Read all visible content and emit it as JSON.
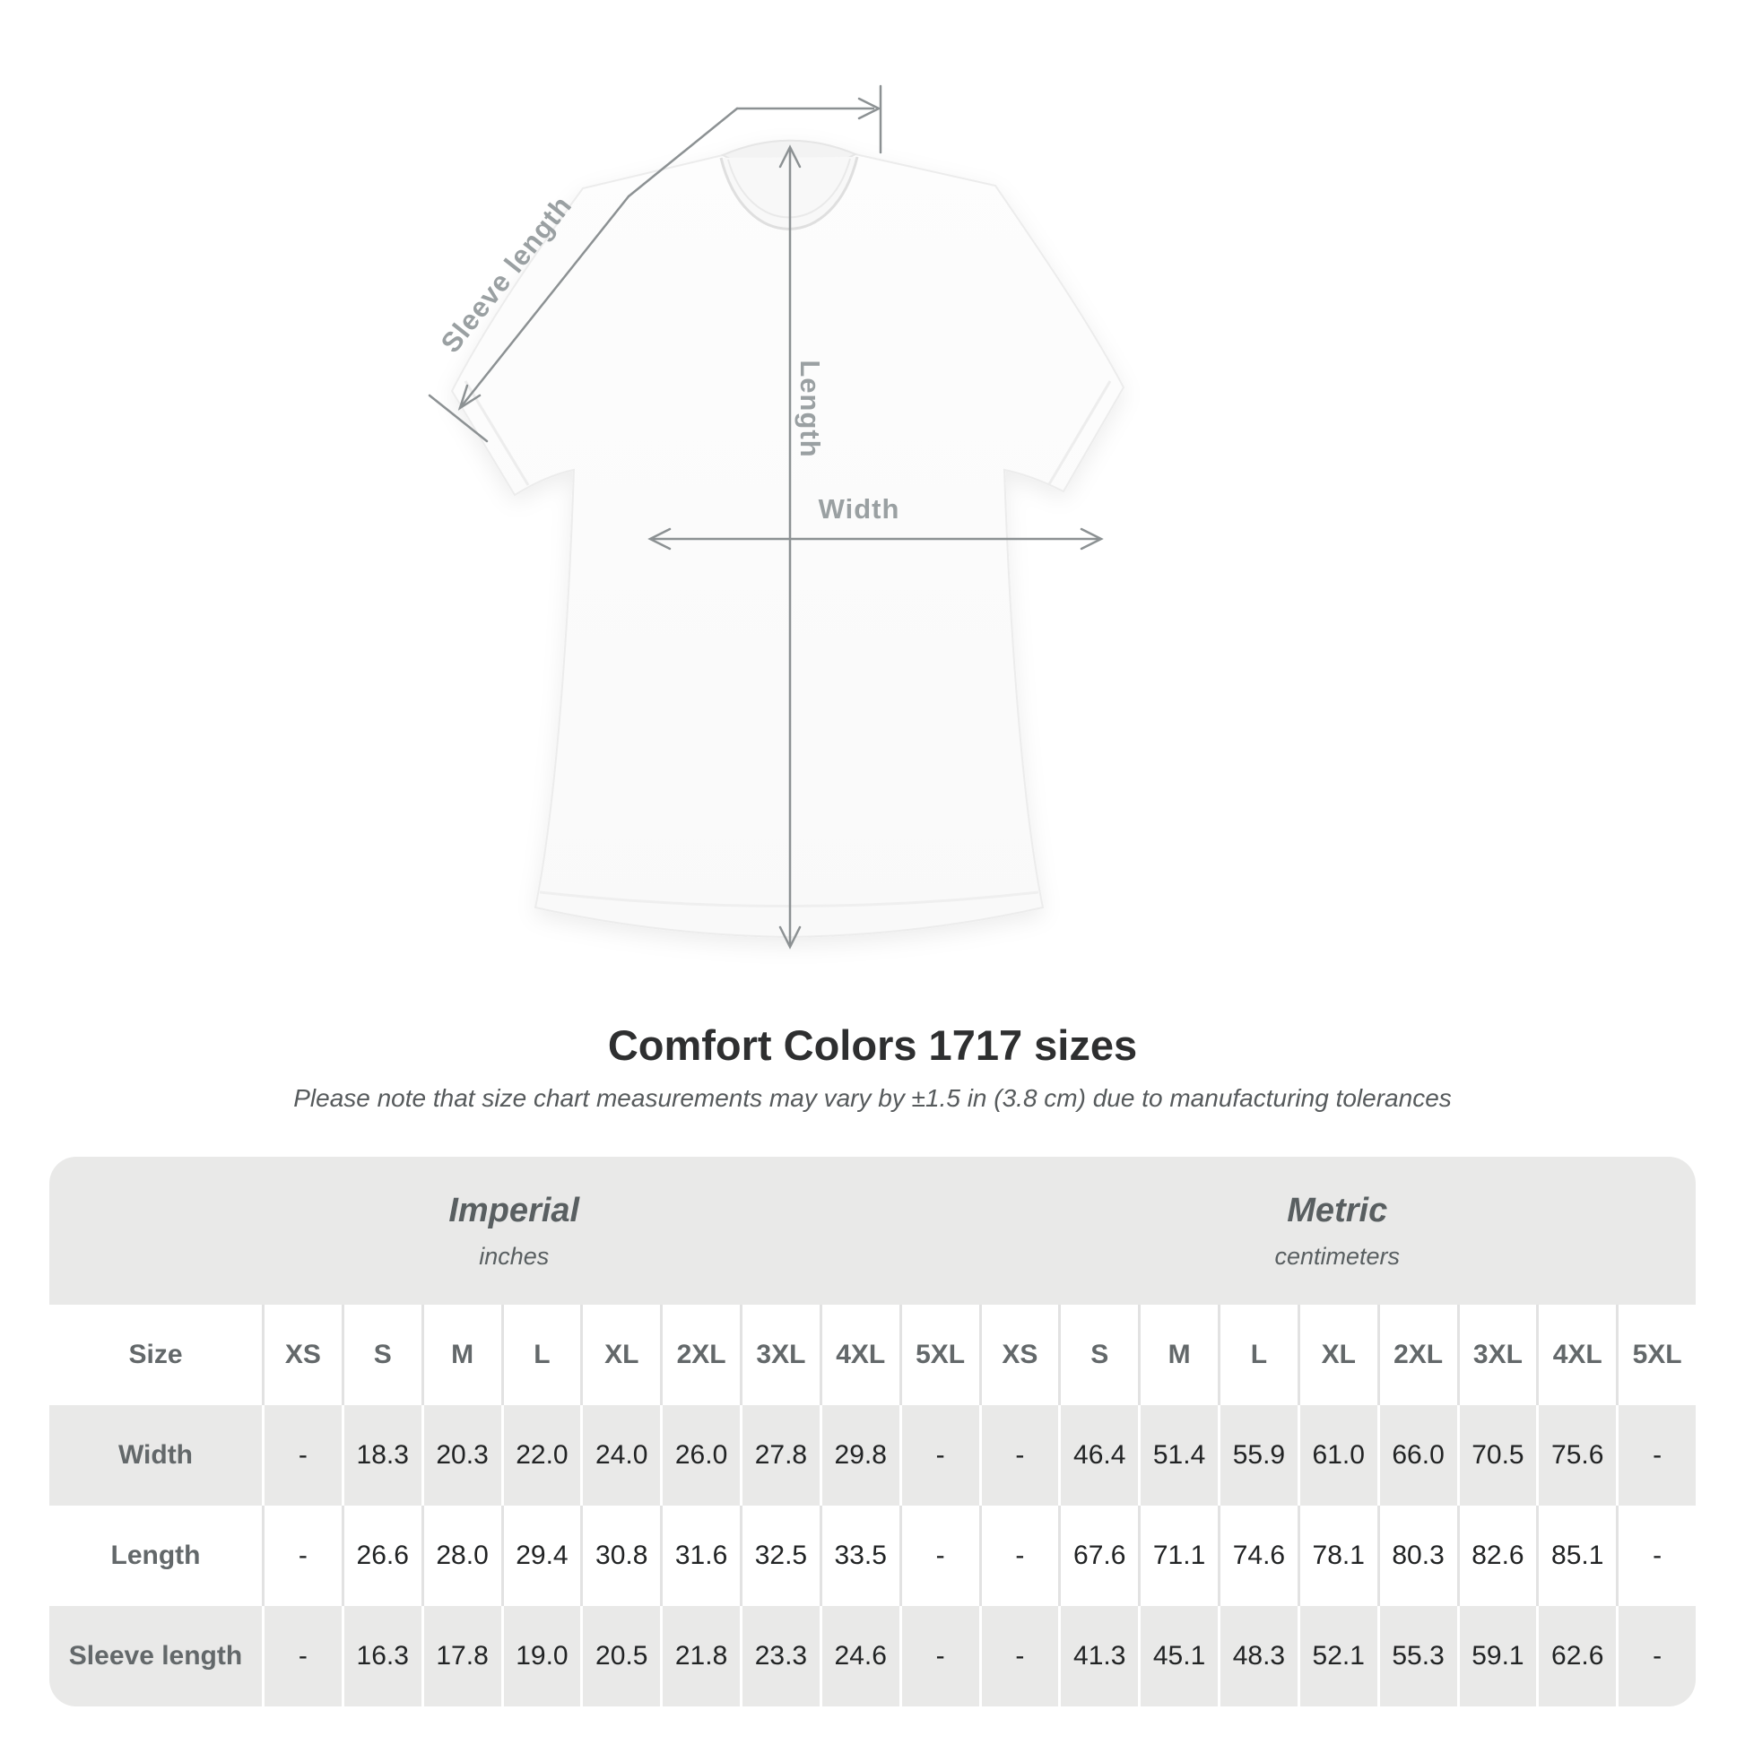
{
  "figure": {
    "sleeve_length_label": "Sleeve length",
    "length_label": "Length",
    "width_label": "Width"
  },
  "title": "Comfort Colors 1717 sizes",
  "subtitle": "Please note that size chart measurements may vary by ±1.5 in (3.8 cm) due to manufacturing tolerances",
  "table": {
    "size_header": "Size",
    "unit_groups": [
      {
        "name": "Imperial",
        "unit": "inches"
      },
      {
        "name": "Metric",
        "unit": "centimeters"
      }
    ],
    "sizes": [
      "XS",
      "S",
      "M",
      "L",
      "XL",
      "2XL",
      "3XL",
      "4XL",
      "5XL"
    ],
    "rows": [
      {
        "label": "Width",
        "imperial": [
          "-",
          "18.3",
          "20.3",
          "22.0",
          "24.0",
          "26.0",
          "27.8",
          "29.8",
          "-"
        ],
        "metric": [
          "-",
          "46.4",
          "51.4",
          "55.9",
          "61.0",
          "66.0",
          "70.5",
          "75.6",
          "-"
        ]
      },
      {
        "label": "Length",
        "imperial": [
          "-",
          "26.6",
          "28.0",
          "29.4",
          "30.8",
          "31.6",
          "32.5",
          "33.5",
          "-"
        ],
        "metric": [
          "-",
          "67.6",
          "71.1",
          "74.6",
          "78.1",
          "80.3",
          "82.6",
          "85.1",
          "-"
        ]
      },
      {
        "label": "Sleeve length",
        "imperial": [
          "-",
          "16.3",
          "17.8",
          "19.0",
          "20.5",
          "21.8",
          "23.3",
          "24.6",
          "-"
        ],
        "metric": [
          "-",
          "41.3",
          "45.1",
          "48.3",
          "52.1",
          "55.3",
          "59.1",
          "62.6",
          "-"
        ]
      }
    ]
  },
  "colors": {
    "band_gray": "#e9e9e8",
    "separator_on_white": "#e2e2e2",
    "header_text": "#63686a",
    "value_text": "#212324",
    "annotation_line": "#8c9193",
    "dimension_label": "#9aa0a2",
    "title_text": "#2e2f30"
  }
}
